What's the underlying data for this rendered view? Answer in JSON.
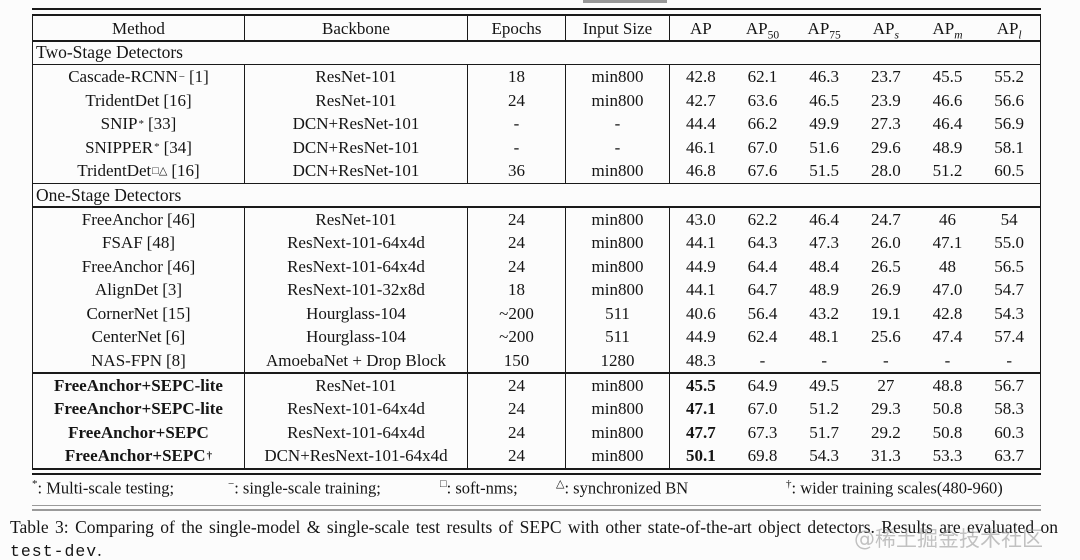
{
  "table": {
    "headers": {
      "method": "Method",
      "backbone": "Backbone",
      "epochs": "Epochs",
      "input_size": "Input Size"
    },
    "ap_headers": [
      {
        "t": "AP",
        "s": ""
      },
      {
        "t": "AP",
        "s": "50"
      },
      {
        "t": "AP",
        "s": "75"
      },
      {
        "t": "AP",
        "s": "s"
      },
      {
        "t": "AP",
        "s": "m"
      },
      {
        "t": "AP",
        "s": "l"
      }
    ],
    "sections": [
      {
        "title": "Two-Stage Detectors",
        "groups": [
          [
            {
              "name": "Cascade-RCNN",
              "sup": "−",
              "ref": "[1]",
              "backbone": "ResNet-101",
              "epochs": "18",
              "input": "min800",
              "vals": [
                "42.8",
                "62.1",
                "46.3",
                "23.7",
                "45.5",
                "55.2"
              ],
              "bold": false
            },
            {
              "name": "TridentDet",
              "sup": "",
              "ref": "[16]",
              "backbone": "ResNet-101",
              "epochs": "24",
              "input": "min800",
              "vals": [
                "42.7",
                "63.6",
                "46.5",
                "23.9",
                "46.6",
                "56.6"
              ],
              "bold": false
            },
            {
              "name": "SNIP",
              "sup": "*",
              "ref": "[33]",
              "backbone": "DCN+ResNet-101",
              "epochs": "-",
              "input": "-",
              "vals": [
                "44.4",
                "66.2",
                "49.9",
                "27.3",
                "46.4",
                "56.9"
              ],
              "bold": false
            },
            {
              "name": "SNIPPER",
              "sup": "*",
              "ref": "[34]",
              "backbone": "DCN+ResNet-101",
              "epochs": "-",
              "input": "-",
              "vals": [
                "46.1",
                "67.0",
                "51.6",
                "29.6",
                "48.9",
                "58.1"
              ],
              "bold": false
            },
            {
              "name": "TridentDet",
              "sup": "□△",
              "ref": "[16]",
              "backbone": "DCN+ResNet-101",
              "epochs": "36",
              "input": "min800",
              "vals": [
                "46.8",
                "67.6",
                "51.5",
                "28.0",
                "51.2",
                "60.5"
              ],
              "bold": false
            }
          ]
        ]
      },
      {
        "title": "One-Stage Detectors",
        "groups": [
          [
            {
              "name": "FreeAnchor",
              "sup": "",
              "ref": "[46]",
              "backbone": "ResNet-101",
              "epochs": "24",
              "input": "min800",
              "vals": [
                "43.0",
                "62.2",
                "46.4",
                "24.7",
                "46",
                "54"
              ],
              "bold": false
            },
            {
              "name": "FSAF",
              "sup": "",
              "ref": "[48]",
              "backbone": "ResNext-101-64x4d",
              "epochs": "24",
              "input": "min800",
              "vals": [
                "44.1",
                "64.3",
                "47.3",
                "26.0",
                "47.1",
                "55.0"
              ],
              "bold": false
            },
            {
              "name": "FreeAnchor",
              "sup": "",
              "ref": "[46]",
              "backbone": "ResNext-101-64x4d",
              "epochs": "24",
              "input": "min800",
              "vals": [
                "44.9",
                "64.4",
                "48.4",
                "26.5",
                "48",
                "56.5"
              ],
              "bold": false
            },
            {
              "name": "AlignDet",
              "sup": "",
              "ref": "[3]",
              "backbone": "ResNext-101-32x8d",
              "epochs": "18",
              "input": "min800",
              "vals": [
                "44.1",
                "64.7",
                "48.9",
                "26.9",
                "47.0",
                "54.7"
              ],
              "bold": false
            },
            {
              "name": "CornerNet",
              "sup": "",
              "ref": "[15]",
              "backbone": "Hourglass-104",
              "epochs": "~200",
              "input": "511",
              "vals": [
                "40.6",
                "56.4",
                "43.2",
                "19.1",
                "42.8",
                "54.3"
              ],
              "bold": false
            },
            {
              "name": "CenterNet",
              "sup": "",
              "ref": "[6]",
              "backbone": "Hourglass-104",
              "epochs": "~200",
              "input": "511",
              "vals": [
                "44.9",
                "62.4",
                "48.1",
                "25.6",
                "47.4",
                "57.4"
              ],
              "bold": false
            },
            {
              "name": "NAS-FPN",
              "sup": "",
              "ref": "[8]",
              "backbone": "AmoebaNet + Drop Block",
              "epochs": "150",
              "input": "1280",
              "vals": [
                "48.3",
                "-",
                "-",
                "-",
                "-",
                "-"
              ],
              "bold": false
            }
          ],
          [
            {
              "name": "FreeAnchor+SEPC-lite",
              "sup": "",
              "ref": "",
              "backbone": "ResNet-101",
              "epochs": "24",
              "input": "min800",
              "vals": [
                "45.5",
                "64.9",
                "49.5",
                "27",
                "48.8",
                "56.7"
              ],
              "bold": true
            },
            {
              "name": "FreeAnchor+SEPC-lite",
              "sup": "",
              "ref": "",
              "backbone": "ResNext-101-64x4d",
              "epochs": "24",
              "input": "min800",
              "vals": [
                "47.1",
                "67.0",
                "51.2",
                "29.3",
                "50.8",
                "58.3"
              ],
              "bold": true
            },
            {
              "name": "FreeAnchor+SEPC",
              "sup": "",
              "ref": "",
              "backbone": "ResNext-101-64x4d",
              "epochs": "24",
              "input": "min800",
              "vals": [
                "47.7",
                "67.3",
                "51.7",
                "29.2",
                "50.8",
                "60.3"
              ],
              "bold": true
            },
            {
              "name": "FreeAnchor+SEPC",
              "sup": "†",
              "ref": "",
              "backbone": "DCN+ResNext-101-64x4d",
              "epochs": "24",
              "input": "min800",
              "vals": [
                "50.1",
                "69.8",
                "54.3",
                "31.3",
                "53.3",
                "63.7"
              ],
              "bold": true
            }
          ]
        ]
      }
    ]
  },
  "footnotes": [
    {
      "sym": "*",
      "text": ": Multi-scale testing;"
    },
    {
      "sym": "−",
      "text": ": single-scale training;"
    },
    {
      "sym": "□",
      "text": ": soft-nms;"
    },
    {
      "sym": "△",
      "text": ": synchronized BN"
    },
    {
      "sym": "†",
      "text": ": wider training scales(480-960)"
    }
  ],
  "caption": {
    "label": "Table 3:",
    "text": "  Comparing of the single-model & single-scale test results of SEPC with other state-of-the-art object detectors.  Results are evaluated on ",
    "code": "test-dev",
    "after": "."
  },
  "watermark": "@稀土掘金技术社区"
}
